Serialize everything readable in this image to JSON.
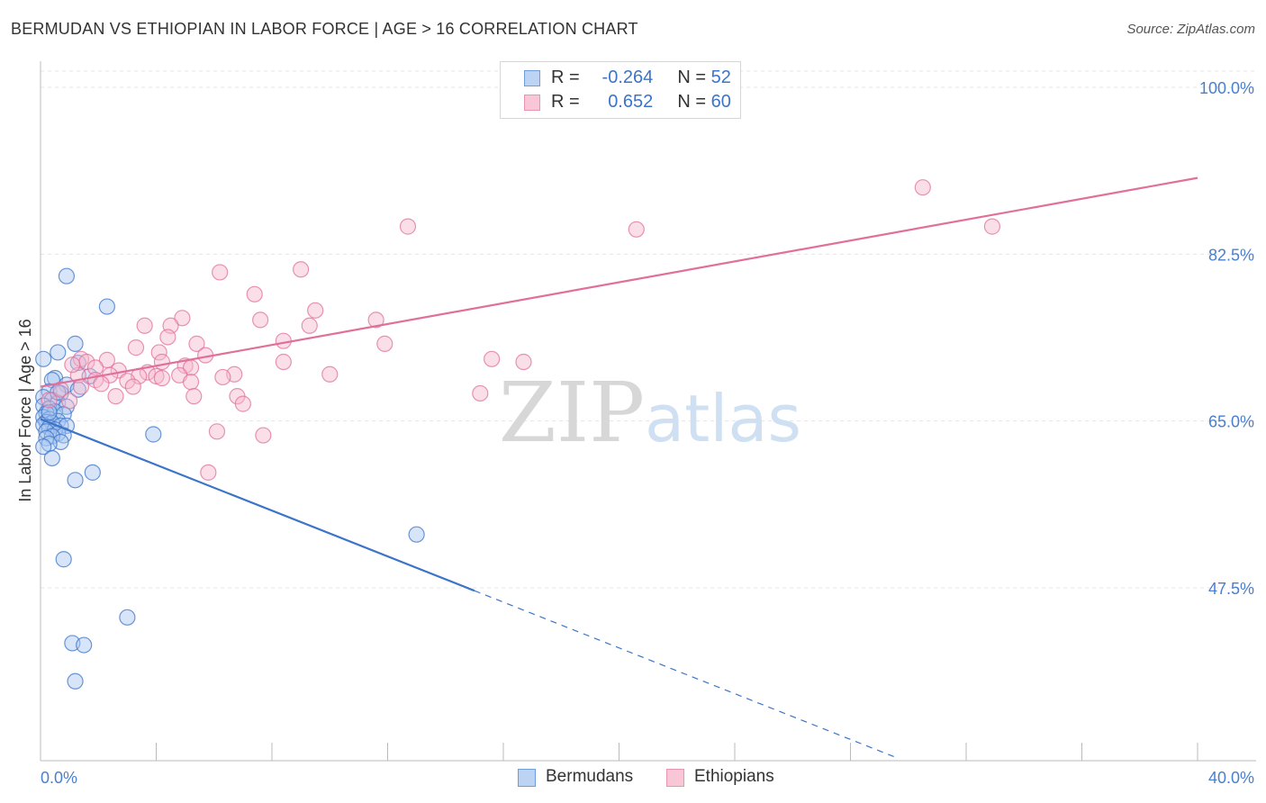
{
  "chart_data": {
    "type": "scatter",
    "title": "BERMUDAN VS ETHIOPIAN IN LABOR FORCE | AGE > 16 CORRELATION CHART",
    "source": "Source: ZipAtlas.com",
    "watermark": {
      "zip": "ZIP",
      "atlas": "atlas"
    },
    "ylabel": "In Labor Force | Age > 16",
    "xlim": [
      0,
      40
    ],
    "ylim": [
      31.5,
      103
    ],
    "x_tick_labels": [
      "0.0%",
      "40.0%"
    ],
    "y_ticks": [
      {
        "value": 100,
        "label": "100.0%"
      },
      {
        "value": 82.5,
        "label": "82.5%"
      },
      {
        "value": 65,
        "label": "65.0%"
      },
      {
        "value": 47.5,
        "label": "47.5%"
      }
    ],
    "legend": {
      "r_label": "R =",
      "n_label": "N =",
      "entries": [
        {
          "r": "-0.264",
          "n": "52"
        },
        {
          "r": "0.652",
          "n": "60"
        }
      ]
    },
    "series": [
      {
        "name": "Bermudans",
        "color": "#3b74c9",
        "fill": "#a8c6f0",
        "trend": {
          "x0": 0,
          "y0": 65.2,
          "x1": 15,
          "y1": 47.2,
          "dash_to_x": 29.5
        },
        "points": [
          [
            0.9,
            80.2
          ],
          [
            2.3,
            77.0
          ],
          [
            1.2,
            73.1
          ],
          [
            0.6,
            72.2
          ],
          [
            0.1,
            71.5
          ],
          [
            1.3,
            71.1
          ],
          [
            1.7,
            69.7
          ],
          [
            0.5,
            69.5
          ],
          [
            0.4,
            69.3
          ],
          [
            0.9,
            68.8
          ],
          [
            1.3,
            68.3
          ],
          [
            0.3,
            68.1
          ],
          [
            0.7,
            67.9
          ],
          [
            0.1,
            67.5
          ],
          [
            0.4,
            67.2
          ],
          [
            0.6,
            66.9
          ],
          [
            0.1,
            66.6
          ],
          [
            0.9,
            66.5
          ],
          [
            0.3,
            66.3
          ],
          [
            0.5,
            66.0
          ],
          [
            0.2,
            65.8
          ],
          [
            0.8,
            65.7
          ],
          [
            0.1,
            65.4
          ],
          [
            0.3,
            65.2
          ],
          [
            0.6,
            65.0
          ],
          [
            0.2,
            64.9
          ],
          [
            0.4,
            64.8
          ],
          [
            0.1,
            64.6
          ],
          [
            0.7,
            64.5
          ],
          [
            0.9,
            64.5
          ],
          [
            0.3,
            64.3
          ],
          [
            0.5,
            64.1
          ],
          [
            0.2,
            63.9
          ],
          [
            0.6,
            63.7
          ],
          [
            0.8,
            63.5
          ],
          [
            0.4,
            63.4
          ],
          [
            0.2,
            63.2
          ],
          [
            0.7,
            62.8
          ],
          [
            0.3,
            62.6
          ],
          [
            0.1,
            62.3
          ],
          [
            0.4,
            61.1
          ],
          [
            1.8,
            59.6
          ],
          [
            1.2,
            58.8
          ],
          [
            3.9,
            63.6
          ],
          [
            13.0,
            53.1
          ],
          [
            0.8,
            50.5
          ],
          [
            3.0,
            44.4
          ],
          [
            1.1,
            41.7
          ],
          [
            1.5,
            41.5
          ],
          [
            1.2,
            37.7
          ],
          [
            0.3,
            65.9
          ],
          [
            0.6,
            68.0
          ]
        ]
      },
      {
        "name": "Ethiopians",
        "color": "#e0709a",
        "fill": "#f6b8cb",
        "trend": {
          "x0": 0,
          "y0": 68.6,
          "x1": 40,
          "y1": 90.5
        },
        "points": [
          [
            30.5,
            89.5
          ],
          [
            12.7,
            85.4
          ],
          [
            20.6,
            85.1
          ],
          [
            32.9,
            85.4
          ],
          [
            6.2,
            80.6
          ],
          [
            9.0,
            80.9
          ],
          [
            7.4,
            78.3
          ],
          [
            9.5,
            76.6
          ],
          [
            4.9,
            75.8
          ],
          [
            7.6,
            75.6
          ],
          [
            11.6,
            75.6
          ],
          [
            3.6,
            75.0
          ],
          [
            4.5,
            75.0
          ],
          [
            9.3,
            75.0
          ],
          [
            4.4,
            73.8
          ],
          [
            8.4,
            73.4
          ],
          [
            11.9,
            73.1
          ],
          [
            5.4,
            73.1
          ],
          [
            3.3,
            72.7
          ],
          [
            4.1,
            72.2
          ],
          [
            5.7,
            71.9
          ],
          [
            1.4,
            71.5
          ],
          [
            2.3,
            71.4
          ],
          [
            15.6,
            71.5
          ],
          [
            16.7,
            71.2
          ],
          [
            4.2,
            71.2
          ],
          [
            8.4,
            71.2
          ],
          [
            1.6,
            71.2
          ],
          [
            5.0,
            70.8
          ],
          [
            5.2,
            70.6
          ],
          [
            1.9,
            70.6
          ],
          [
            2.7,
            70.3
          ],
          [
            3.7,
            70.1
          ],
          [
            10.0,
            69.9
          ],
          [
            6.7,
            69.9
          ],
          [
            4.8,
            69.8
          ],
          [
            1.3,
            69.8
          ],
          [
            2.4,
            69.8
          ],
          [
            3.4,
            69.7
          ],
          [
            4.0,
            69.7
          ],
          [
            6.3,
            69.6
          ],
          [
            4.2,
            69.5
          ],
          [
            1.9,
            69.3
          ],
          [
            3.0,
            69.2
          ],
          [
            5.2,
            69.1
          ],
          [
            2.1,
            68.9
          ],
          [
            3.2,
            68.6
          ],
          [
            1.4,
            68.6
          ],
          [
            0.7,
            68.3
          ],
          [
            2.6,
            67.6
          ],
          [
            5.3,
            67.6
          ],
          [
            6.8,
            67.6
          ],
          [
            15.2,
            67.9
          ],
          [
            1.0,
            67.1
          ],
          [
            7.0,
            66.8
          ],
          [
            6.1,
            63.9
          ],
          [
            7.7,
            63.5
          ],
          [
            5.8,
            59.6
          ],
          [
            0.3,
            67.2
          ],
          [
            1.1,
            70.9
          ]
        ]
      }
    ]
  }
}
